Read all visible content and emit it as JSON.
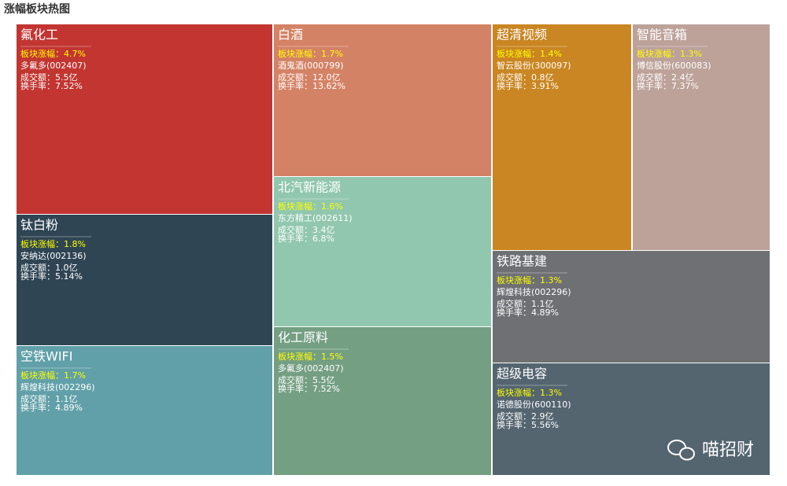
{
  "title": "涨幅板块热图",
  "tiles": [
    {
      "name": "氟化工",
      "color": "#c23531",
      "change": "板块涨幅：4.7%",
      "stock": "多氟多(002407)",
      "turnover": "成交额：5.5亿",
      "turnover_rate": "换手率：7.52%"
    },
    {
      "name": "钛白粉",
      "color": "#2f4554",
      "change": "板块涨幅：1.8%",
      "stock": "安纳达(002136)",
      "turnover": "成交额：1.0亿",
      "turnover_rate": "换手率：5.14%"
    },
    {
      "name": "空铁WIFI",
      "color": "#61a0a8",
      "change": "板块涨幅：1.7%",
      "stock": "辉煌科技(002296)",
      "turnover": "成交额：1.1亿",
      "turnover_rate": "换手率：4.89%"
    },
    {
      "name": "白酒",
      "color": "#d48265",
      "change": "板块涨幅：1.7%",
      "stock": "酒鬼酒(000799)",
      "turnover": "成交额：12.0亿",
      "turnover_rate": "换手率：13.62%"
    },
    {
      "name": "北汽新能源",
      "color": "#91c7ae",
      "change": "板块涨幅：1.6%",
      "stock": "东方精工(002611)",
      "turnover": "成交额：3.4亿",
      "turnover_rate": "换手率：6.8%"
    },
    {
      "name": "化工原料",
      "color": "#749f83",
      "change": "板块涨幅：1.5%",
      "stock": "多氟多(002407)",
      "turnover": "成交额：5.5亿",
      "turnover_rate": "换手率：7.52%"
    },
    {
      "name": "超清视频",
      "color": "#ca8622",
      "change": "板块涨幅：1.4%",
      "stock": "智云股份(300097)",
      "turnover": "成交额：0.8亿",
      "turnover_rate": "换手率：3.91%"
    },
    {
      "name": "智能音箱",
      "color": "#bda29a",
      "change": "板块涨幅：1.3%",
      "stock": "博信股份(600083)",
      "turnover": "成交额：2.4亿",
      "turnover_rate": "换手率：7.37%"
    },
    {
      "name": "铁路基建",
      "color": "#6e7074",
      "change": "板块涨幅：1.3%",
      "stock": "辉煌科技(002296)",
      "turnover": "成交额：1.1亿",
      "turnover_rate": "换手率：4.89%"
    },
    {
      "name": "超级电容",
      "color": "#546570",
      "change": "板块涨幅：1.3%",
      "stock": "诺德股份(600110)",
      "turnover": "成交额：2.9亿",
      "turnover_rate": "换手率：5.56%"
    }
  ],
  "watermark": "喵招财"
}
